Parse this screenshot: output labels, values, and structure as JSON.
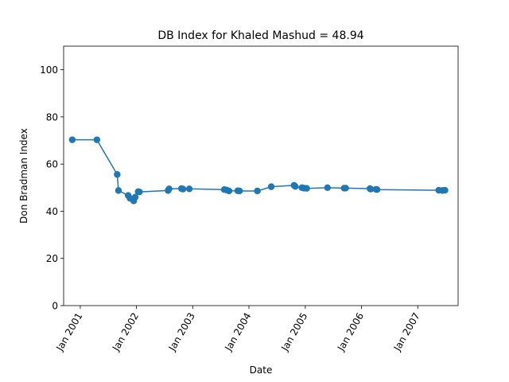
{
  "chart_data": {
    "type": "line",
    "title": "DB Index for Khaled Mashud = 48.94",
    "xlabel": "Date",
    "ylabel": "Don Bradman Index",
    "xlim": [
      "2000-09-15",
      "2007-09-20"
    ],
    "ylim": [
      0,
      110
    ],
    "x_ticks": [
      {
        "date": "2001-01-01",
        "label": "Jan 2001"
      },
      {
        "date": "2002-01-01",
        "label": "Jan 2002"
      },
      {
        "date": "2003-01-01",
        "label": "Jan 2003"
      },
      {
        "date": "2004-01-01",
        "label": "Jan 2004"
      },
      {
        "date": "2005-01-01",
        "label": "Jan 2005"
      },
      {
        "date": "2006-01-01",
        "label": "Jan 2006"
      },
      {
        "date": "2007-01-01",
        "label": "Jan 2007"
      }
    ],
    "y_ticks": [
      0,
      20,
      40,
      60,
      80,
      100
    ],
    "grid": false,
    "color": "#1f77b4",
    "series": [
      {
        "x": [
          "2000-11-10",
          "2001-04-19",
          "2001-08-29",
          "2001-09-06",
          "2001-11-08",
          "2001-11-20",
          "2001-12-14",
          "2001-12-24",
          "2002-01-12",
          "2002-01-20",
          "2002-07-25",
          "2002-08-01",
          "2002-10-20",
          "2002-10-30",
          "2002-12-10",
          "2003-07-25",
          "2003-08-10",
          "2003-08-25",
          "2003-10-20",
          "2003-11-01",
          "2004-02-25",
          "2004-05-25",
          "2004-10-20",
          "2004-10-28",
          "2004-12-10",
          "2004-12-25",
          "2005-01-10",
          "2005-05-25",
          "2005-09-10",
          "2005-09-20",
          "2006-02-25",
          "2006-03-01",
          "2006-04-05",
          "2006-04-12",
          "2007-05-17",
          "2007-06-10",
          "2007-06-27"
        ],
        "y": [
          70.3,
          70.3,
          55.6,
          48.8,
          46.7,
          45.5,
          44.4,
          46.0,
          48.3,
          48.2,
          48.8,
          49.5,
          49.6,
          49.4,
          49.5,
          49.2,
          49.0,
          48.6,
          48.7,
          48.6,
          48.6,
          50.4,
          51.0,
          50.5,
          50.0,
          49.8,
          49.7,
          50.0,
          49.8,
          49.8,
          49.6,
          49.4,
          49.3,
          49.2,
          48.9,
          48.8,
          48.9
        ]
      }
    ]
  }
}
